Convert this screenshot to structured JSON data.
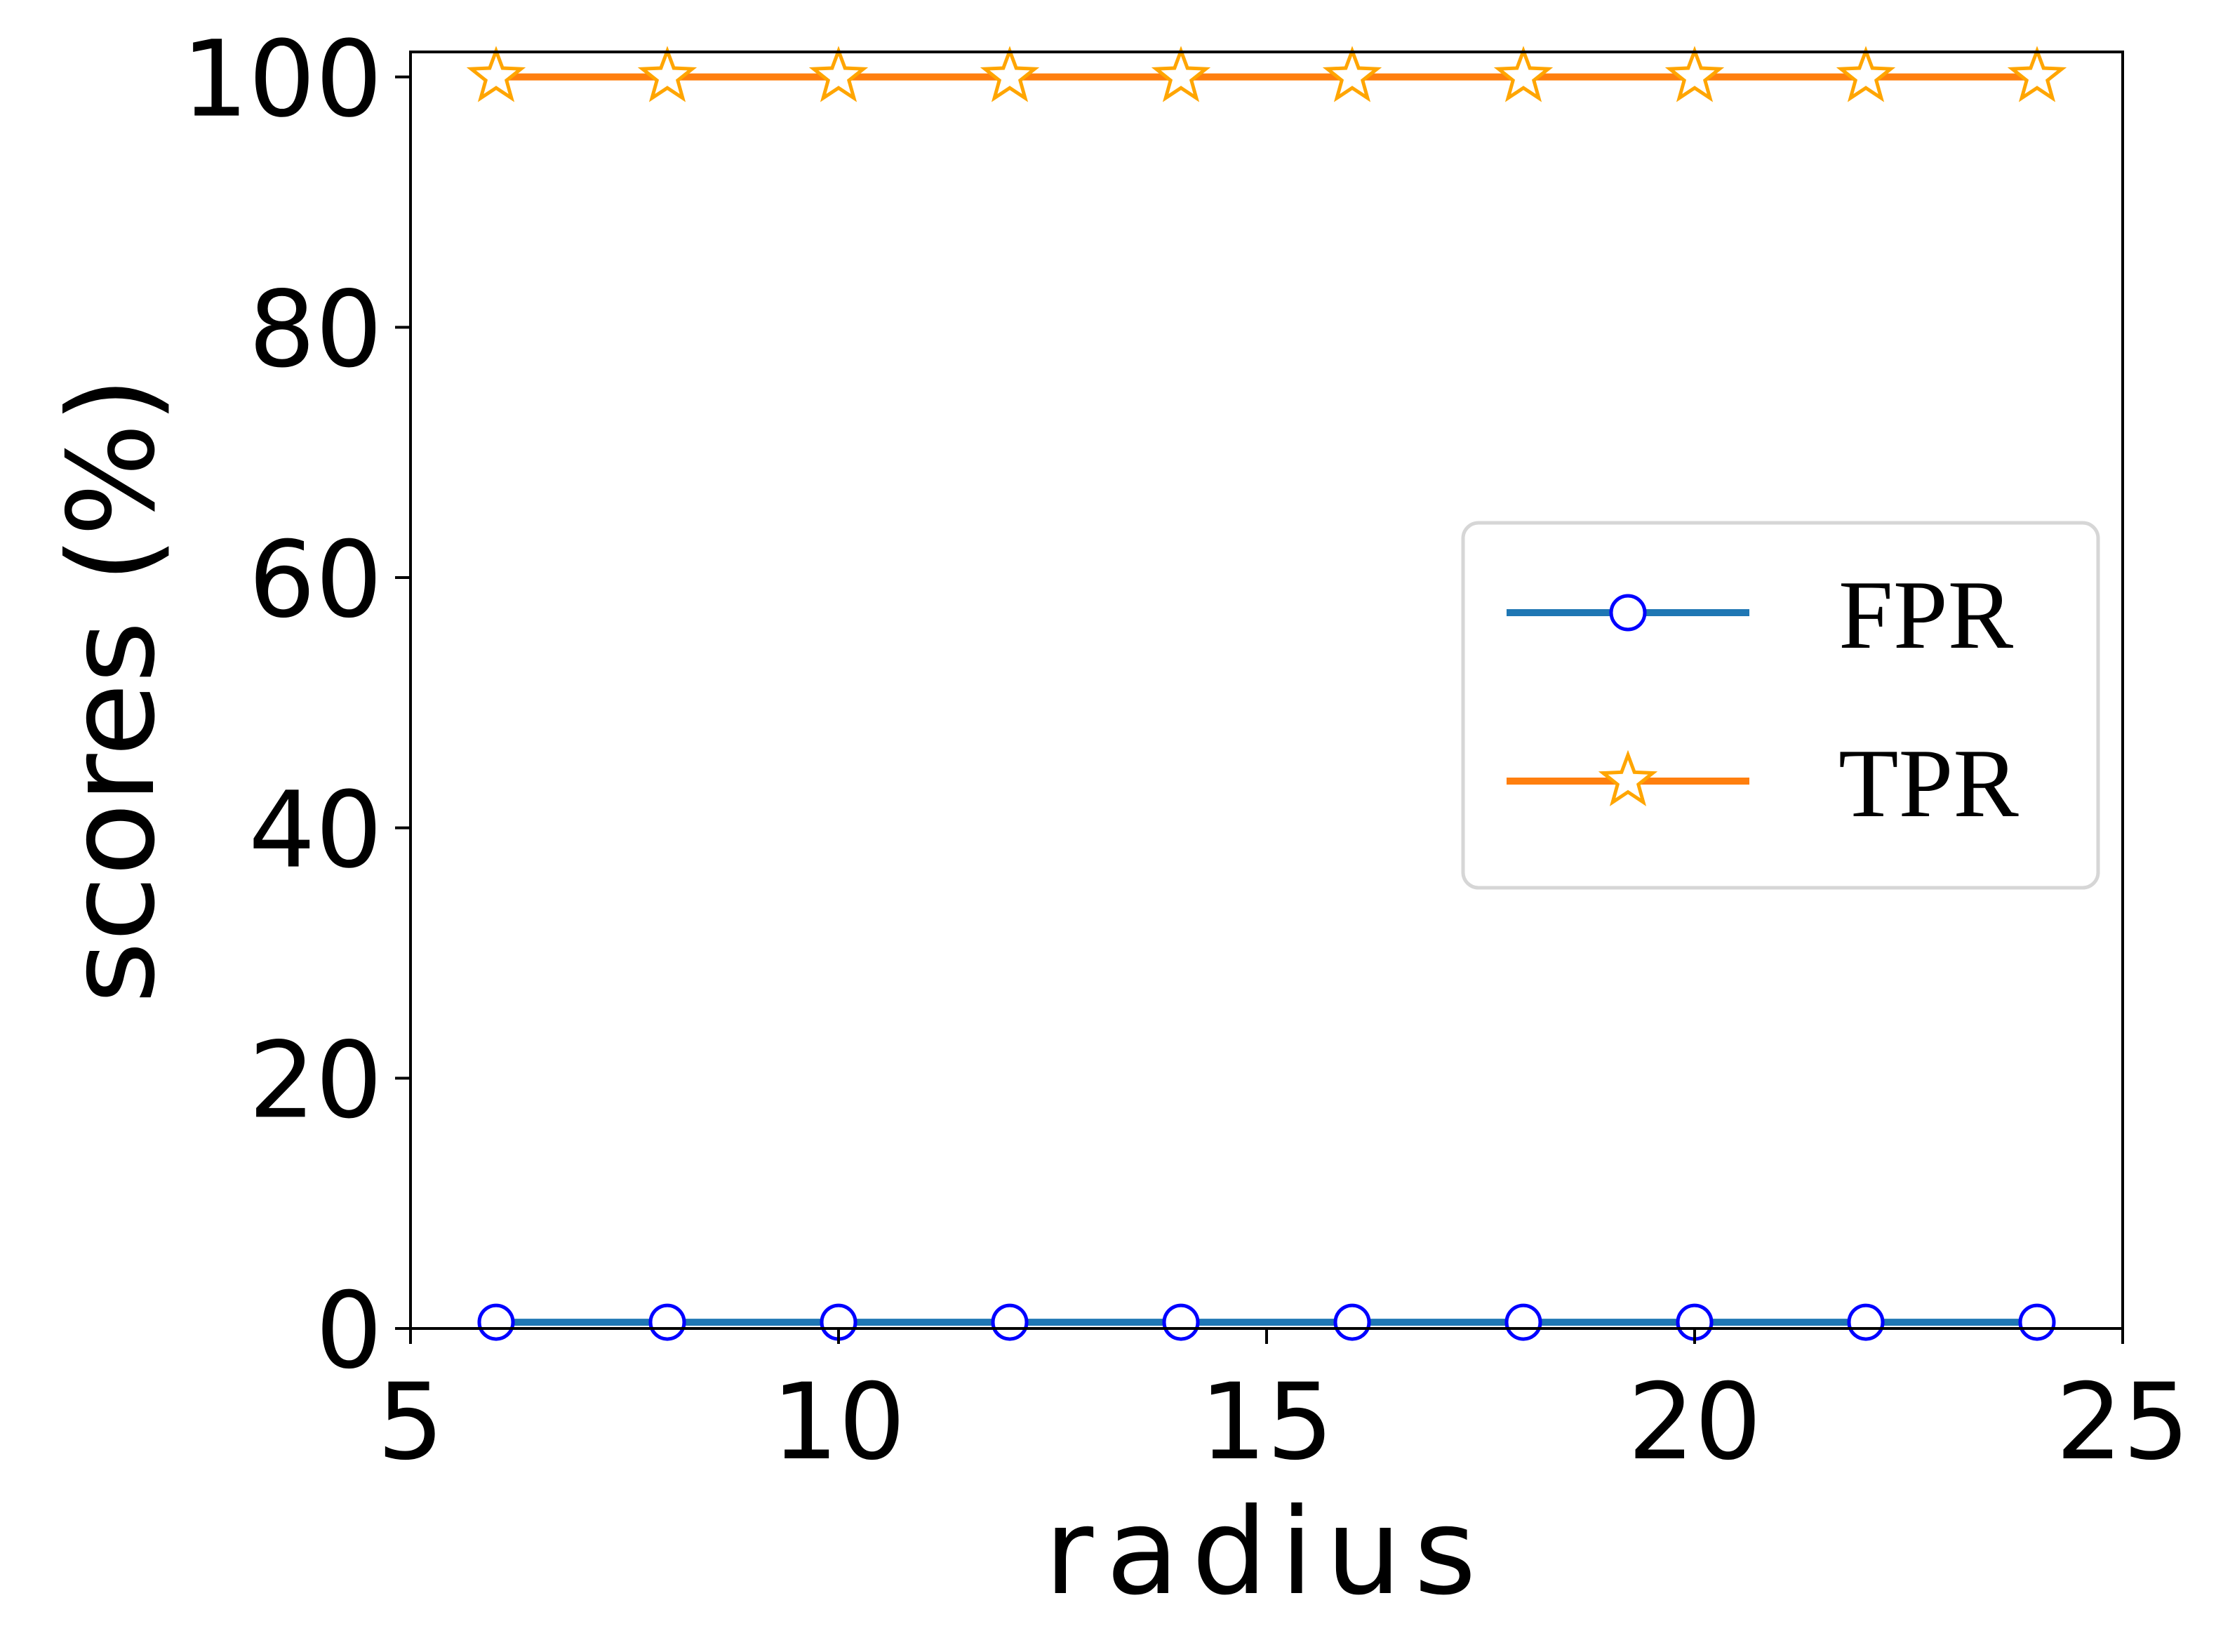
{
  "chart_data": {
    "type": "line",
    "title": "",
    "xlabel": "radius",
    "ylabel": "scores (%)",
    "xlim": [
      5,
      25
    ],
    "ylim": [
      0,
      102
    ],
    "xticks": [
      5,
      10,
      15,
      20,
      25
    ],
    "yticks": [
      0,
      20,
      40,
      60,
      80,
      100
    ],
    "x": [
      6,
      8,
      10,
      12,
      14,
      16,
      18,
      20,
      22,
      24
    ],
    "series": [
      {
        "name": "FPR",
        "values": [
          0.5,
          0.5,
          0.5,
          0.5,
          0.5,
          0.5,
          0.5,
          0.5,
          0.5,
          0.5
        ],
        "color": "#1f77b4",
        "marker": "circle",
        "marker_edge_color": "#0000ff",
        "marker_face_color": "#ffffff"
      },
      {
        "name": "TPR",
        "values": [
          100,
          100,
          100,
          100,
          100,
          100,
          100,
          100,
          100,
          100
        ],
        "color": "#ff7f0e",
        "marker": "star",
        "marker_edge_color": "#ffa500",
        "marker_face_color": "#ffffff"
      }
    ],
    "grid": false,
    "legend_position": "center-right"
  }
}
